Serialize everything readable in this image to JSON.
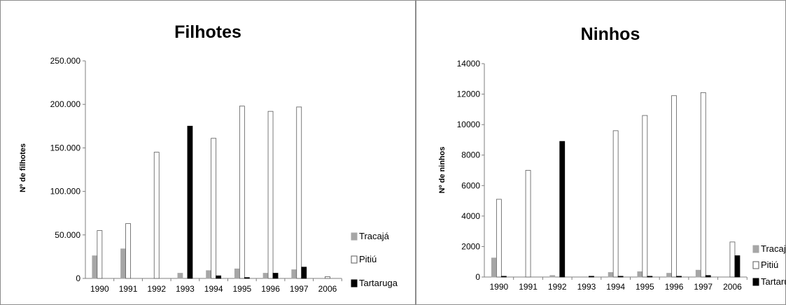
{
  "chart_data": [
    {
      "type": "bar",
      "title": "Filhotes",
      "ylabel": "Nº de filhotes",
      "xlabel": "",
      "categories": [
        "1990",
        "1991",
        "1992",
        "1993",
        "1994",
        "1995",
        "1996",
        "1997",
        "2006"
      ],
      "ylim": [
        0,
        250000
      ],
      "yticks": [
        "0",
        "50.000",
        "100.000",
        "150.000",
        "200.000",
        "250.000"
      ],
      "grid": false,
      "legend_position": "bottom-right",
      "series": [
        {
          "name": "Tracajá",
          "color": "#a6a6a6",
          "values": [
            26000,
            34000,
            0,
            6000,
            9000,
            11000,
            6000,
            10000,
            0
          ]
        },
        {
          "name": "Pitiú",
          "color": "#ffffff",
          "values": [
            55000,
            63000,
            145000,
            0,
            161000,
            198000,
            192000,
            197000,
            2000
          ]
        },
        {
          "name": "Tartaruga",
          "color": "#000000",
          "values": [
            0,
            0,
            0,
            175000,
            3000,
            1000,
            6000,
            13000,
            0
          ]
        }
      ]
    },
    {
      "type": "bar",
      "title": "Ninhos",
      "ylabel": "Nº de ninhos",
      "xlabel": "",
      "categories": [
        "1990",
        "1991",
        "1992",
        "1993",
        "1994",
        "1995",
        "1996",
        "1997",
        "2006"
      ],
      "ylim": [
        0,
        14000
      ],
      "yticks": [
        "0",
        "2000",
        "4000",
        "6000",
        "8000",
        "10000",
        "12000",
        "14000"
      ],
      "grid": false,
      "legend_position": "bottom-right",
      "series": [
        {
          "name": "Tracajá",
          "color": "#a6a6a6",
          "values": [
            1250,
            0,
            100,
            0,
            300,
            350,
            250,
            450,
            0
          ]
        },
        {
          "name": "Pitiú",
          "color": "#ffffff",
          "values": [
            5100,
            7000,
            0,
            0,
            9600,
            10600,
            11900,
            12100,
            2300
          ]
        },
        {
          "name": "Tartaruga",
          "color": "#000000",
          "values": [
            50,
            0,
            8900,
            50,
            50,
            50,
            50,
            100,
            1400
          ]
        }
      ]
    }
  ]
}
